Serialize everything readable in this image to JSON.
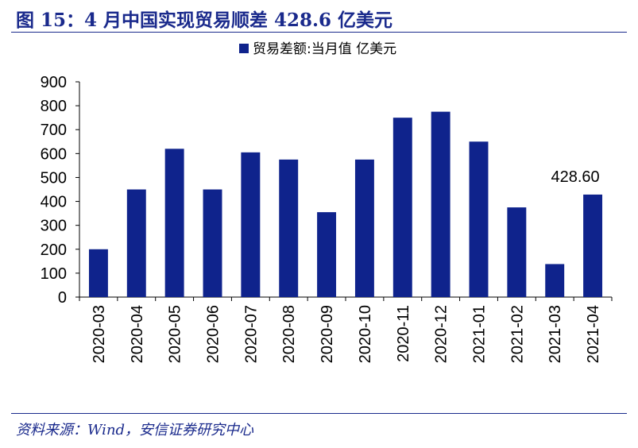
{
  "figure": {
    "title": "图 15：4 月中国实现贸易顺差 428.6 亿美元",
    "source": "资料来源：Wind，安信证券研究中心"
  },
  "chart_data": {
    "type": "bar",
    "categories": [
      "2020-03",
      "2020-04",
      "2020-05",
      "2020-06",
      "2020-07",
      "2020-08",
      "2020-09",
      "2020-10",
      "2020-11",
      "2020-12",
      "2021-01",
      "2021-02",
      "2021-03",
      "2021-04"
    ],
    "series": [
      {
        "name": "贸易差额:当月值 亿美元",
        "values": [
          200,
          450,
          620,
          450,
          605,
          575,
          355,
          575,
          750,
          775,
          650,
          375,
          138,
          428.6
        ],
        "color": "#0f238c"
      }
    ],
    "yticks": [
      "0",
      "100",
      "200",
      "300",
      "400",
      "500",
      "600",
      "700",
      "800",
      "900"
    ],
    "ylim": [
      0,
      900
    ],
    "legend_position": "top-center",
    "grid": false,
    "annotation": {
      "text": "428.60",
      "category": "2021-04"
    }
  }
}
